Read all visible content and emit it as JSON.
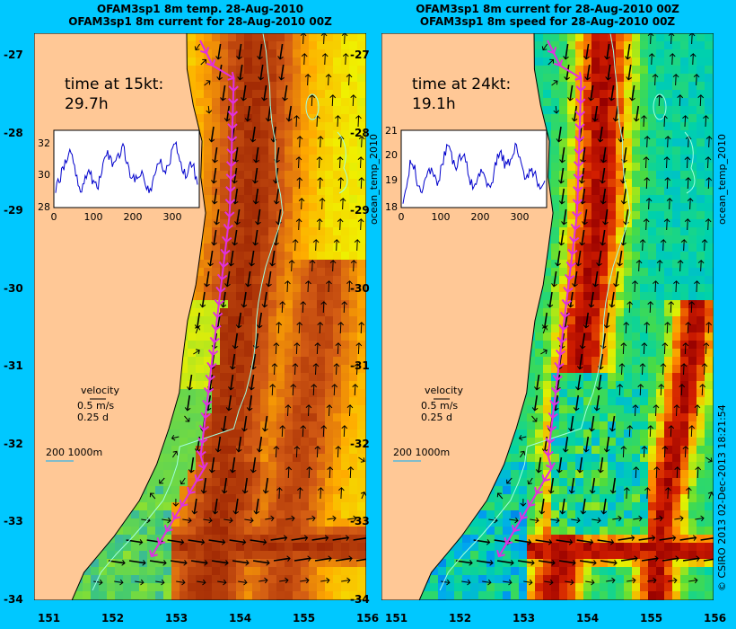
{
  "panels": [
    {
      "title_line1": "OFAM3sp1 8m temp. 28-Aug-2010",
      "title_line2": "OFAM3sp1 8m current for 28-Aug-2010 00Z",
      "time_heading": "time at 15kt:",
      "time_value": "29.7h",
      "inset": {
        "yticks": [
          "32",
          "30",
          "28"
        ],
        "xticks": [
          "0",
          "100",
          "200",
          "300"
        ]
      },
      "field": "temperature",
      "side_label": "ocean_temp_2010"
    },
    {
      "title_line1": "OFAM3sp1 8m current for 28-Aug-2010 00Z",
      "title_line2": "OFAM3sp1 8m speed for 28-Aug-2010 00Z",
      "time_heading": "time at 24kt:",
      "time_value": "19.1h",
      "inset": {
        "yticks": [
          "21",
          "20",
          "19",
          "18"
        ],
        "xticks": [
          "0",
          "100",
          "200",
          "300"
        ]
      },
      "field": "speed",
      "side_label": "ocean_temp_2010"
    }
  ],
  "legend": {
    "velocity": "velocity",
    "speed": "0.5 m/s",
    "time": "0.25 d",
    "depth": "200  1000m"
  },
  "lat_ticks": [
    "-27",
    "-28",
    "-29",
    "-30",
    "-31",
    "-32",
    "-33",
    "-34"
  ],
  "lon_ticks": [
    "151",
    "152",
    "153",
    "154",
    "155",
    "156"
  ],
  "credit": "© CSIRO 2013   02-Dec-2013 18:21:54",
  "colors": {
    "background": "#00c8ff",
    "land": "#ffc896",
    "route": "#e030e0",
    "contour": "#a0ffe0"
  }
}
